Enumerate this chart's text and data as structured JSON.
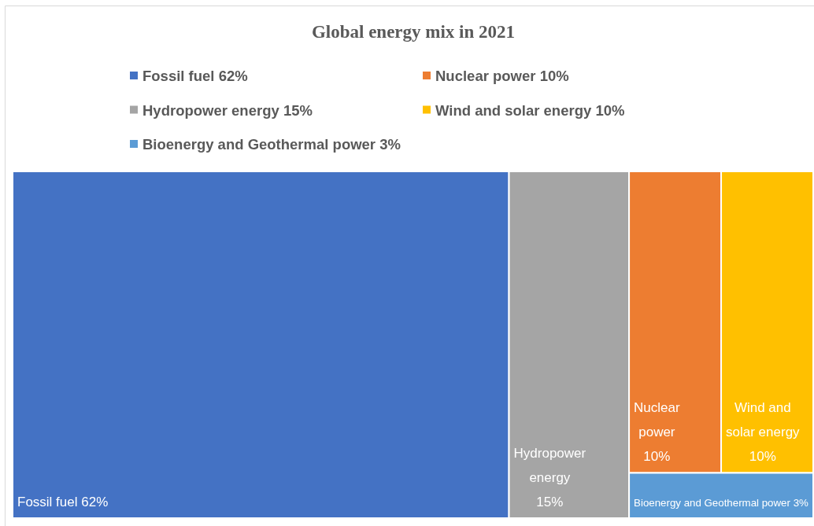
{
  "chart_data": {
    "type": "other",
    "title": "Global energy mix in 2021",
    "categories": [
      "Fossil fuel",
      "Nuclear power",
      "Hydropower energy",
      "Wind and solar energy",
      "Bioenergy and Geothermal power"
    ],
    "values": [
      62,
      10,
      15,
      10,
      3
    ],
    "value_labels": [
      "62%",
      "10%",
      "15%",
      "10%",
      "3%"
    ],
    "colors": [
      "#4472c4",
      "#ed7d31",
      "#a5a5a5",
      "#ffc000",
      "#5b9bd5"
    ]
  }
}
